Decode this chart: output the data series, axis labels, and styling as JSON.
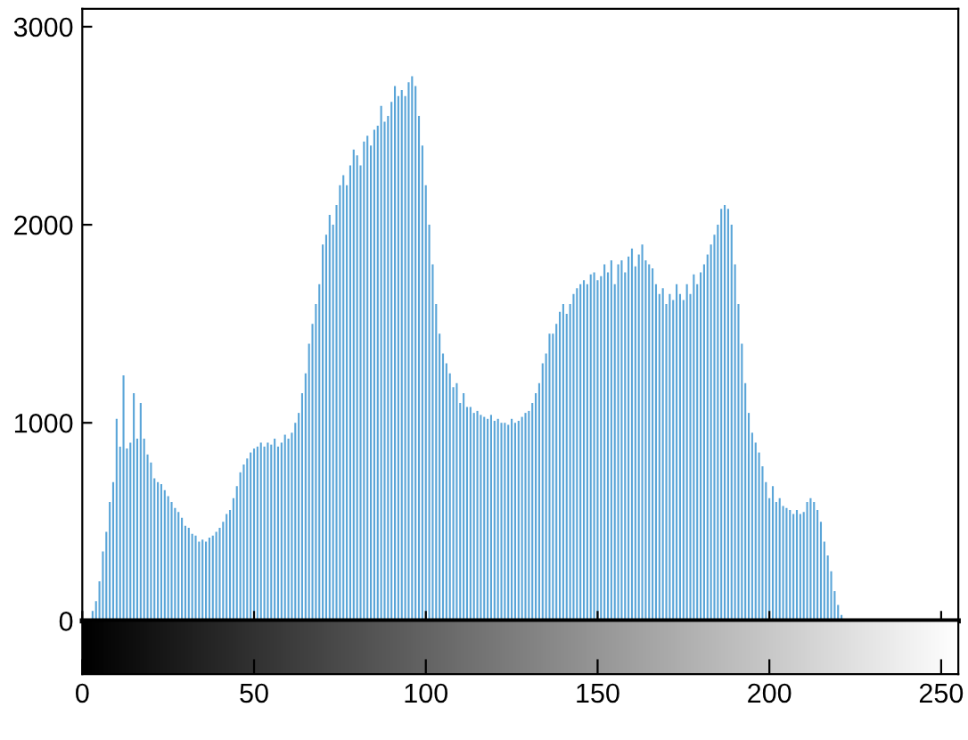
{
  "chart_data": {
    "type": "histogram",
    "color": "#5aa5d8",
    "bins": [
      -0.5,
      0.5,
      1.5,
      2.5,
      3.5,
      4.5,
      5.5,
      6.5,
      7.5,
      8.5,
      9.5,
      10.5,
      11.5,
      12.5,
      13.5,
      14.5,
      15.5,
      16.5,
      17.5,
      18.5,
      19.5,
      20.5,
      21.5,
      22.5,
      23.5,
      24.5,
      25.5,
      26.5,
      27.5,
      28.5,
      29.5,
      30.5,
      31.5,
      32.5,
      33.5,
      34.5,
      35.5,
      36.5,
      37.5,
      38.5,
      39.5,
      40.5,
      41.5,
      42.5,
      43.5,
      44.5,
      45.5,
      46.5,
      47.5,
      48.5,
      49.5,
      50.5,
      51.5,
      52.5,
      53.5,
      54.5,
      55.5,
      56.5,
      57.5,
      58.5,
      59.5,
      60.5,
      61.5,
      62.5,
      63.5,
      64.5,
      65.5,
      66.5,
      67.5,
      68.5,
      69.5,
      70.5,
      71.5,
      72.5,
      73.5,
      74.5,
      75.5,
      76.5,
      77.5,
      78.5,
      79.5,
      80.5,
      81.5,
      82.5,
      83.5,
      84.5,
      85.5,
      86.5,
      87.5,
      88.5,
      89.5,
      90.5,
      91.5,
      92.5,
      93.5,
      94.5,
      95.5,
      96.5,
      97.5,
      98.5,
      99.5,
      100.5,
      101.5,
      102.5,
      103.5,
      104.5,
      105.5,
      106.5,
      107.5,
      108.5,
      109.5,
      110.5,
      111.5,
      112.5,
      113.5,
      114.5,
      115.5,
      116.5,
      117.5,
      118.5,
      119.5,
      120.5,
      121.5,
      122.5,
      123.5,
      124.5,
      125.5,
      126.5,
      127.5,
      128.5,
      129.5,
      130.5,
      131.5,
      132.5,
      133.5,
      134.5,
      135.5,
      136.5,
      137.5,
      138.5,
      139.5,
      140.5,
      141.5,
      142.5,
      143.5,
      144.5,
      145.5,
      146.5,
      147.5,
      148.5,
      149.5,
      150.5,
      151.5,
      152.5,
      153.5,
      154.5,
      155.5,
      156.5,
      157.5,
      158.5,
      159.5,
      160.5,
      161.5,
      162.5,
      163.5,
      164.5,
      165.5,
      166.5,
      167.5,
      168.5,
      169.5,
      170.5,
      171.5,
      172.5,
      173.5,
      174.5,
      175.5,
      176.5,
      177.5,
      178.5,
      179.5,
      180.5,
      181.5,
      182.5,
      183.5,
      184.5,
      185.5,
      186.5,
      187.5,
      188.5,
      189.5,
      190.5,
      191.5,
      192.5,
      193.5,
      194.5,
      195.5,
      196.5,
      197.5,
      198.5,
      199.5,
      200.5,
      201.5,
      202.5,
      203.5,
      204.5,
      205.5,
      206.5,
      207.5,
      208.5,
      209.5,
      210.5,
      211.5,
      212.5,
      213.5,
      214.5,
      215.5,
      216.5,
      217.5,
      218.5,
      219.5,
      220.5,
      221.5,
      222.5,
      223.5,
      224.5,
      225.5,
      226.5,
      227.5,
      228.5,
      229.5,
      230.5,
      231.5,
      232.5,
      233.5,
      234.5,
      235.5,
      236.5,
      237.5,
      238.5,
      239.5,
      240.5,
      241.5,
      242.5,
      243.5,
      244.5,
      245.5,
      246.5,
      247.5,
      248.5,
      249.5,
      250.5,
      251.5,
      252.5,
      253.5,
      254.5,
      255.5
    ],
    "values": [
      0,
      0,
      0,
      50,
      100,
      200,
      350,
      450,
      600,
      700,
      1020,
      880,
      1240,
      870,
      900,
      1150,
      920,
      1100,
      920,
      840,
      800,
      720,
      700,
      690,
      660,
      630,
      600,
      570,
      550,
      520,
      480,
      470,
      440,
      430,
      400,
      410,
      400,
      420,
      430,
      450,
      470,
      500,
      540,
      560,
      620,
      680,
      750,
      790,
      820,
      850,
      870,
      880,
      900,
      880,
      900,
      890,
      920,
      880,
      900,
      940,
      920,
      950,
      1000,
      1050,
      1150,
      1250,
      1400,
      1500,
      1600,
      1700,
      1900,
      1950,
      2050,
      2000,
      2100,
      2200,
      2250,
      2200,
      2300,
      2380,
      2350,
      2300,
      2420,
      2450,
      2400,
      2480,
      2500,
      2600,
      2520,
      2550,
      2620,
      2700,
      2650,
      2680,
      2650,
      2720,
      2750,
      2700,
      2550,
      2400,
      2200,
      2000,
      1800,
      1600,
      1450,
      1350,
      1300,
      1250,
      1180,
      1200,
      1100,
      1150,
      1080,
      1080,
      1050,
      1060,
      1040,
      1030,
      1020,
      1040,
      1010,
      1020,
      1000,
      1000,
      990,
      1020,
      1000,
      1010,
      1030,
      1050,
      1060,
      1100,
      1150,
      1200,
      1300,
      1350,
      1450,
      1450,
      1500,
      1560,
      1600,
      1550,
      1600,
      1650,
      1680,
      1700,
      1720,
      1700,
      1750,
      1760,
      1720,
      1740,
      1800,
      1760,
      1820,
      1700,
      1800,
      1820,
      1760,
      1840,
      1880,
      1790,
      1850,
      1900,
      1820,
      1800,
      1780,
      1700,
      1650,
      1680,
      1600,
      1650,
      1620,
      1700,
      1650,
      1620,
      1700,
      1650,
      1750,
      1700,
      1760,
      1800,
      1850,
      1900,
      1950,
      2000,
      2080,
      2100,
      2080,
      2000,
      1800,
      1600,
      1400,
      1200,
      1050,
      950,
      900,
      850,
      780,
      700,
      620,
      680,
      600,
      620,
      580,
      570,
      560,
      540,
      560,
      540,
      550,
      600,
      620,
      600,
      560,
      500,
      400,
      330,
      250,
      150,
      80,
      30,
      0,
      0,
      0,
      0,
      0,
      0,
      0,
      0,
      0,
      0,
      0,
      0,
      0,
      0,
      0,
      0,
      0,
      0,
      0,
      0,
      0,
      0,
      0,
      0,
      0,
      0,
      0,
      0,
      0,
      0,
      0,
      0,
      0,
      0
    ],
    "xlim": [
      0,
      255
    ],
    "xticks": [
      0,
      50,
      100,
      150,
      200,
      250
    ],
    "ylim": [
      0,
      3090
    ],
    "yticks": [
      0,
      1000,
      2000,
      3000
    ],
    "grid": false
  }
}
